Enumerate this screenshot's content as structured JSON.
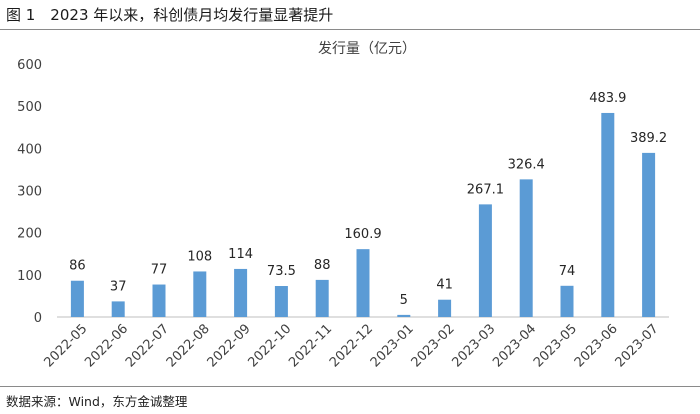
{
  "figure": {
    "title": "图 1　2023 年以来，科创债月均发行量显著提升",
    "source": "数据来源：Wind，东方金诚整理"
  },
  "colors": {
    "bar": "#5B9BD5",
    "axis": "#BFBFBF",
    "text": "#404040"
  },
  "chart_data": {
    "type": "bar",
    "title": "发行量（亿元）",
    "categories": [
      "2022-05",
      "2022-06",
      "2022-07",
      "2022-08",
      "2022-09",
      "2022-10",
      "2022-11",
      "2022-12",
      "2023-01",
      "2023-02",
      "2023-03",
      "2023-04",
      "2023-05",
      "2023-06",
      "2023-07"
    ],
    "values": [
      86,
      37,
      77,
      108,
      114,
      73.5,
      88,
      160.9,
      5,
      41,
      267.1,
      326.4,
      74,
      483.9,
      389.2
    ],
    "value_labels": [
      "86",
      "37",
      "77",
      "108",
      "114",
      "73.5",
      "88",
      "160.9",
      "5",
      "41",
      "267.1",
      "326.4",
      "74",
      "483.9",
      "389.2"
    ],
    "y_ticks": [
      "0",
      "100",
      "200",
      "300",
      "400",
      "500",
      "600"
    ],
    "ylim": [
      0,
      600
    ],
    "grid": false,
    "legend": "none"
  }
}
